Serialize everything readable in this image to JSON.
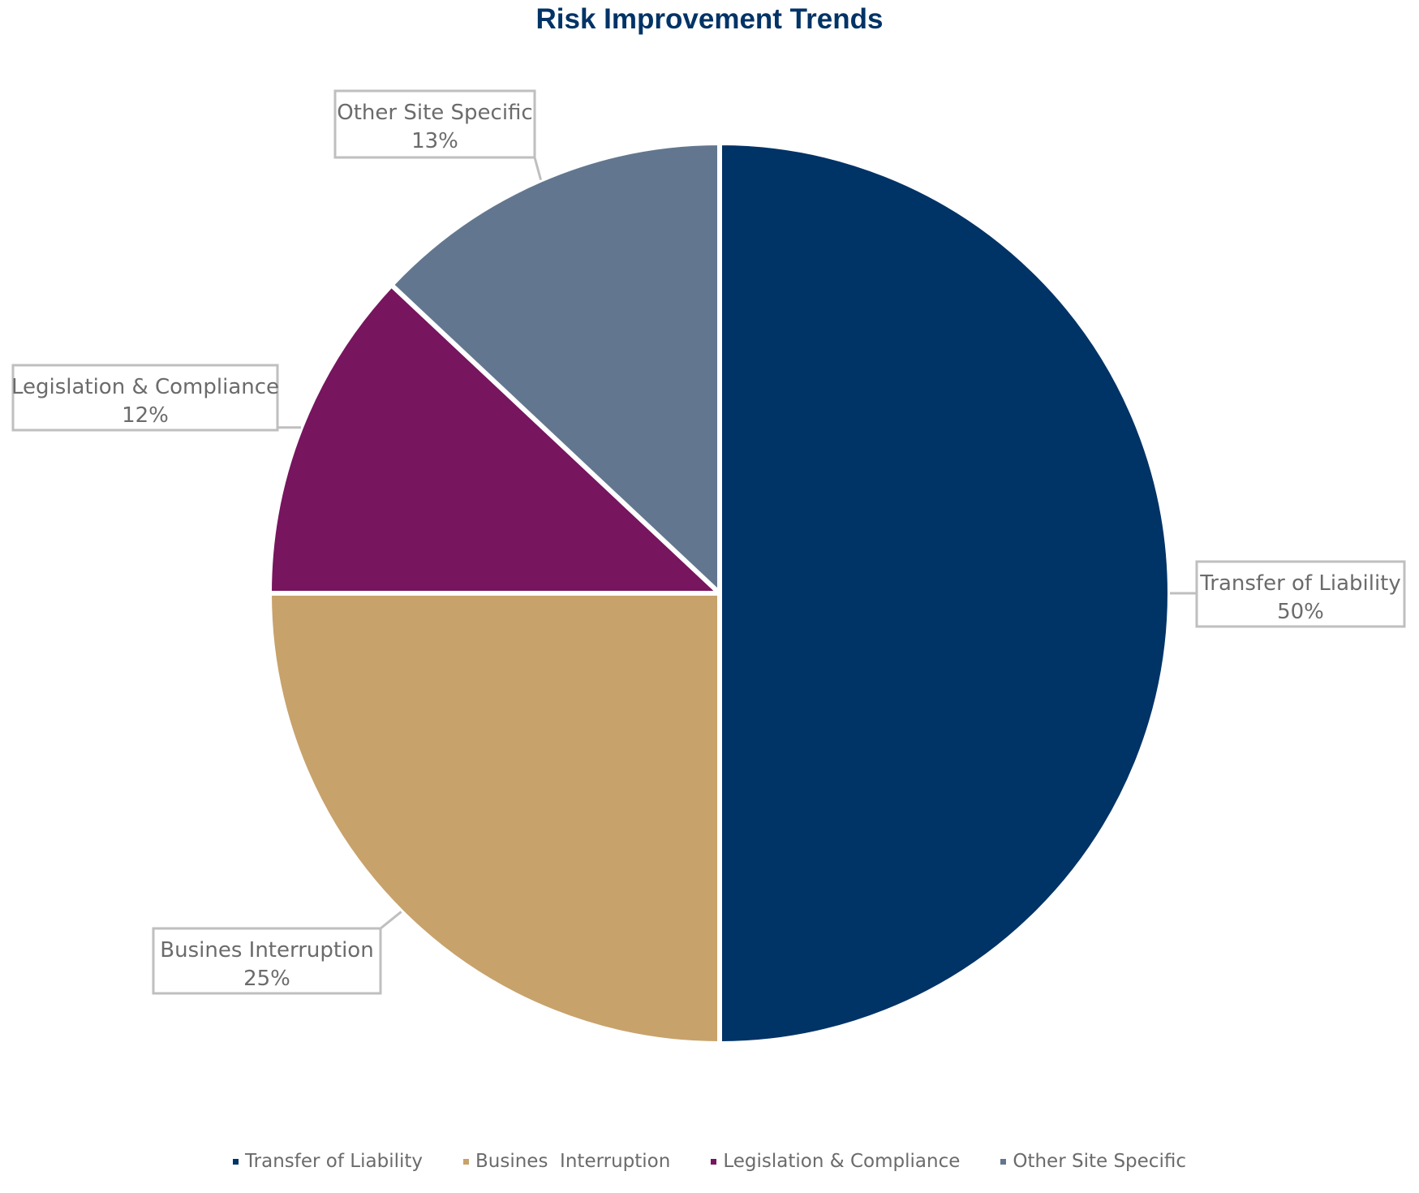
{
  "chart_data": {
    "type": "pie",
    "title": "Risk Improvement Trends",
    "slices": [
      {
        "label": "Transfer of Liability",
        "value": 50,
        "value_label": "50%",
        "color": "#003366"
      },
      {
        "label": "Busines  Interruption",
        "value": 25,
        "value_label": "25%",
        "color": "#C8A26B"
      },
      {
        "label": "Legislation & Compliance",
        "value": 12,
        "value_label": "12%",
        "color": "#77155F"
      },
      {
        "label": "Other Site Specific",
        "value": 13,
        "value_label": "13%",
        "color": "#62778F"
      }
    ],
    "legend_position": "bottom"
  }
}
